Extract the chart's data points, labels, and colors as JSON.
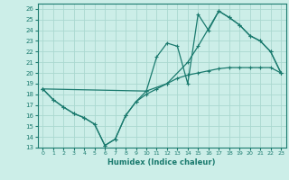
{
  "xlabel": "Humidex (Indice chaleur)",
  "bg_color": "#cceee8",
  "grid_color": "#aad8d0",
  "line_color": "#1a7a6e",
  "xlim": [
    -0.5,
    23.5
  ],
  "ylim": [
    13,
    26.5
  ],
  "xticks": [
    0,
    1,
    2,
    3,
    4,
    5,
    6,
    7,
    8,
    9,
    10,
    11,
    12,
    13,
    14,
    15,
    16,
    17,
    18,
    19,
    20,
    21,
    22,
    23
  ],
  "yticks": [
    13,
    14,
    15,
    16,
    17,
    18,
    19,
    20,
    21,
    22,
    23,
    24,
    25,
    26
  ],
  "line1_x": [
    0,
    1,
    2,
    3,
    4,
    5,
    6,
    7,
    8,
    9,
    10,
    11,
    12,
    13,
    14,
    15,
    16,
    17,
    18,
    19,
    20,
    21,
    22,
    23
  ],
  "line1_y": [
    18.5,
    17.5,
    16.8,
    16.2,
    15.8,
    15.2,
    13.2,
    13.8,
    16.0,
    17.3,
    18.0,
    18.5,
    19.0,
    19.5,
    19.8,
    20.0,
    20.2,
    20.4,
    20.5,
    20.5,
    20.5,
    20.5,
    20.5,
    20.0
  ],
  "line2_x": [
    0,
    1,
    2,
    3,
    4,
    5,
    6,
    7,
    8,
    9,
    10,
    11,
    12,
    13,
    14,
    15,
    16,
    17,
    18,
    19,
    20,
    21,
    22,
    23
  ],
  "line2_y": [
    18.5,
    17.5,
    16.8,
    16.2,
    15.8,
    15.2,
    13.2,
    13.8,
    16.0,
    17.3,
    18.3,
    21.5,
    22.8,
    22.5,
    19.0,
    25.5,
    24.0,
    25.8,
    25.2,
    24.5,
    23.5,
    23.0,
    22.0,
    20.0
  ],
  "line3_x": [
    0,
    10,
    12,
    14,
    15,
    17,
    18,
    19,
    20,
    21,
    22,
    23
  ],
  "line3_y": [
    18.5,
    18.3,
    19.0,
    21.0,
    22.5,
    25.8,
    25.2,
    24.5,
    23.5,
    23.0,
    22.0,
    20.0
  ]
}
